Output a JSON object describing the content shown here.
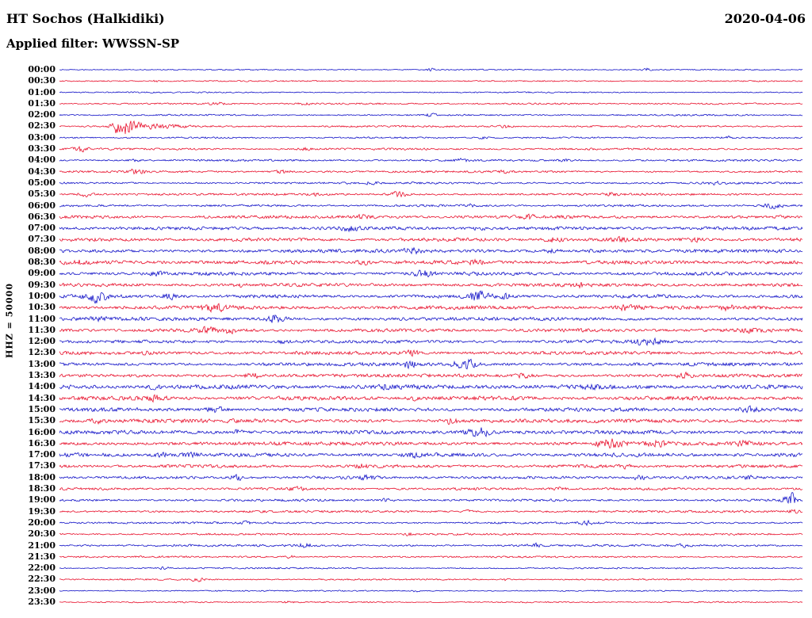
{
  "header": {
    "station": "HT Sochos (Halkidiki)",
    "date": "2020-04-06",
    "filter_label": "Applied filter: WWSSN-SP"
  },
  "y_axis_label": "HHZ = 50000",
  "colors": {
    "blue": "#1414c8",
    "red": "#e8112d"
  },
  "chart_data": {
    "type": "line",
    "title": "HT Sochos (Halkidiki) helicorder",
    "subtitle": "Applied filter: WWSSN-SP",
    "date": "2020-04-06",
    "channel_scale": "HHZ = 50000",
    "row_interval_minutes": 30,
    "rows": 48,
    "first_row": "00:00",
    "last_row": "23:30",
    "x_axis": "time within 30-minute row",
    "legend": "alternating blue/red rows, one row per 30 minutes",
    "traces": [
      {
        "time": "00:00",
        "color": "blue",
        "amp": 0.7,
        "events": [
          [
            0.5,
            1.8,
            0.004
          ],
          [
            0.79,
            2.2,
            0.004
          ]
        ]
      },
      {
        "time": "00:30",
        "color": "red",
        "amp": 0.8,
        "events": [
          [
            0.13,
            1.4,
            0.004
          ]
        ]
      },
      {
        "time": "01:00",
        "color": "blue",
        "amp": 0.8,
        "events": []
      },
      {
        "time": "01:30",
        "color": "red",
        "amp": 1.0,
        "events": [
          [
            0.215,
            2.2,
            0.008
          ],
          [
            0.33,
            1.6,
            0.006
          ]
        ]
      },
      {
        "time": "02:00",
        "color": "blue",
        "amp": 1.0,
        "events": [
          [
            0.5,
            1.6,
            0.005
          ]
        ]
      },
      {
        "time": "02:30",
        "color": "red",
        "amp": 1.2,
        "events": [
          [
            0.082,
            11,
            0.008
          ],
          [
            0.1,
            5,
            0.012
          ],
          [
            0.135,
            2.5,
            0.02
          ],
          [
            0.6,
            1.8,
            0.006
          ]
        ]
      },
      {
        "time": "03:00",
        "color": "blue",
        "amp": 1.0,
        "events": [
          [
            0.57,
            1.8,
            0.005
          ],
          [
            0.9,
            1.6,
            0.005
          ]
        ]
      },
      {
        "time": "03:30",
        "color": "red",
        "amp": 1.3,
        "events": [
          [
            0.028,
            3.0,
            0.007
          ],
          [
            0.33,
            1.6,
            0.006
          ]
        ]
      },
      {
        "time": "04:00",
        "color": "blue",
        "amp": 1.3,
        "events": [
          [
            0.1,
            1.6,
            0.005
          ],
          [
            0.54,
            2.4,
            0.006
          ],
          [
            0.68,
            1.8,
            0.005
          ]
        ]
      },
      {
        "time": "04:30",
        "color": "red",
        "amp": 1.3,
        "events": [
          [
            0.103,
            3.8,
            0.008
          ],
          [
            0.3,
            2.0,
            0.008
          ],
          [
            0.6,
            1.6,
            0.006
          ]
        ]
      },
      {
        "time": "05:00",
        "color": "blue",
        "amp": 1.3,
        "events": [
          [
            0.42,
            1.6,
            0.005
          ],
          [
            0.88,
            1.9,
            0.006
          ]
        ]
      },
      {
        "time": "05:30",
        "color": "red",
        "amp": 1.4,
        "events": [
          [
            0.035,
            2.8,
            0.007
          ],
          [
            0.345,
            1.9,
            0.006
          ],
          [
            0.455,
            3.2,
            0.009
          ],
          [
            0.74,
            1.7,
            0.005
          ]
        ]
      },
      {
        "time": "06:00",
        "color": "blue",
        "amp": 1.4,
        "events": [
          [
            0.555,
            1.9,
            0.006
          ],
          [
            0.96,
            3.2,
            0.009
          ]
        ]
      },
      {
        "time": "06:30",
        "color": "red",
        "amp": 2.0,
        "events": [
          [
            0.41,
            2.2,
            0.008
          ],
          [
            0.63,
            2.2,
            0.008
          ]
        ]
      },
      {
        "time": "07:00",
        "color": "blue",
        "amp": 2.2,
        "events": [
          [
            0.39,
            2.8,
            0.008
          ],
          [
            0.565,
            2.2,
            0.006
          ]
        ]
      },
      {
        "time": "07:30",
        "color": "red",
        "amp": 2.2,
        "events": [
          [
            0.665,
            3.0,
            0.008
          ],
          [
            0.755,
            2.6,
            0.008
          ],
          [
            0.855,
            2.4,
            0.007
          ]
        ]
      },
      {
        "time": "08:00",
        "color": "blue",
        "amp": 2.2,
        "events": [
          [
            0.475,
            3.0,
            0.008
          ],
          [
            0.665,
            2.8,
            0.007
          ],
          [
            0.72,
            2.4,
            0.006
          ]
        ]
      },
      {
        "time": "08:30",
        "color": "red",
        "amp": 2.4,
        "events": [
          [
            0.02,
            2.8,
            0.007
          ],
          [
            0.41,
            2.6,
            0.008
          ],
          [
            0.56,
            2.2,
            0.006
          ]
        ]
      },
      {
        "time": "09:00",
        "color": "blue",
        "amp": 2.2,
        "events": [
          [
            0.13,
            2.2,
            0.006
          ],
          [
            0.49,
            3.6,
            0.008
          ]
        ]
      },
      {
        "time": "09:30",
        "color": "red",
        "amp": 2.2,
        "events": [
          [
            0.24,
            2.2,
            0.006
          ],
          [
            0.7,
            2.2,
            0.006
          ]
        ]
      },
      {
        "time": "10:00",
        "color": "blue",
        "amp": 2.2,
        "events": [
          [
            0.05,
            7.0,
            0.01
          ],
          [
            0.15,
            3.4,
            0.008
          ],
          [
            0.565,
            7.0,
            0.01
          ],
          [
            0.6,
            3.2,
            0.006
          ]
        ]
      },
      {
        "time": "10:30",
        "color": "red",
        "amp": 2.4,
        "events": [
          [
            0.21,
            3.6,
            0.012
          ],
          [
            0.765,
            4.4,
            0.01
          ],
          [
            0.9,
            2.6,
            0.007
          ]
        ]
      },
      {
        "time": "11:00",
        "color": "blue",
        "amp": 2.2,
        "events": [
          [
            0.05,
            2.4,
            0.008
          ],
          [
            0.29,
            4.8,
            0.01
          ]
        ]
      },
      {
        "time": "11:30",
        "color": "red",
        "amp": 2.2,
        "events": [
          [
            0.2,
            4.0,
            0.008
          ],
          [
            0.228,
            3.6,
            0.008
          ],
          [
            0.93,
            3.0,
            0.008
          ]
        ]
      },
      {
        "time": "12:00",
        "color": "blue",
        "amp": 2.0,
        "events": [
          [
            0.3,
            2.2,
            0.006
          ],
          [
            0.79,
            4.4,
            0.012
          ]
        ]
      },
      {
        "time": "12:30",
        "color": "red",
        "amp": 2.2,
        "events": [
          [
            0.12,
            2.2,
            0.006
          ],
          [
            0.475,
            3.2,
            0.007
          ]
        ]
      },
      {
        "time": "13:00",
        "color": "blue",
        "amp": 2.2,
        "events": [
          [
            0.47,
            4.0,
            0.008
          ],
          [
            0.545,
            6.5,
            0.011
          ]
        ]
      },
      {
        "time": "13:30",
        "color": "red",
        "amp": 2.2,
        "events": [
          [
            0.26,
            3.2,
            0.007
          ],
          [
            0.625,
            2.6,
            0.006
          ],
          [
            0.84,
            3.0,
            0.007
          ]
        ]
      },
      {
        "time": "14:00",
        "color": "blue",
        "amp": 2.8,
        "events": [
          [
            0.13,
            2.6,
            0.006
          ],
          [
            0.44,
            2.6,
            0.006
          ],
          [
            0.72,
            2.8,
            0.006
          ]
        ]
      },
      {
        "time": "14:30",
        "color": "red",
        "amp": 2.6,
        "events": [
          [
            0.13,
            3.2,
            0.008
          ],
          [
            0.48,
            2.6,
            0.006
          ]
        ]
      },
      {
        "time": "15:00",
        "color": "blue",
        "amp": 2.4,
        "events": [
          [
            0.21,
            3.2,
            0.008
          ],
          [
            0.93,
            3.6,
            0.009
          ]
        ]
      },
      {
        "time": "15:30",
        "color": "red",
        "amp": 2.4,
        "events": [
          [
            0.05,
            2.4,
            0.006
          ],
          [
            0.525,
            3.2,
            0.008
          ]
        ]
      },
      {
        "time": "16:00",
        "color": "blue",
        "amp": 2.4,
        "events": [
          [
            0.24,
            2.6,
            0.006
          ],
          [
            0.565,
            6.0,
            0.012
          ]
        ]
      },
      {
        "time": "16:30",
        "color": "red",
        "amp": 2.4,
        "events": [
          [
            0.74,
            5.5,
            0.012
          ],
          [
            0.8,
            4.0,
            0.009
          ],
          [
            0.92,
            3.0,
            0.007
          ]
        ]
      },
      {
        "time": "17:00",
        "color": "blue",
        "amp": 2.4,
        "events": [
          [
            0.135,
            3.2,
            0.008
          ],
          [
            0.175,
            2.8,
            0.007
          ],
          [
            0.475,
            2.4,
            0.006
          ]
        ]
      },
      {
        "time": "17:30",
        "color": "red",
        "amp": 2.0,
        "events": [
          [
            0.41,
            2.8,
            0.007
          ],
          [
            0.76,
            2.2,
            0.006
          ]
        ]
      },
      {
        "time": "18:00",
        "color": "blue",
        "amp": 1.8,
        "events": [
          [
            0.24,
            3.2,
            0.008
          ],
          [
            0.415,
            2.8,
            0.007
          ],
          [
            0.78,
            2.6,
            0.007
          ],
          [
            0.93,
            2.2,
            0.006
          ]
        ]
      },
      {
        "time": "18:30",
        "color": "red",
        "amp": 1.6,
        "events": [
          [
            0.32,
            2.0,
            0.006
          ],
          [
            0.67,
            2.4,
            0.007
          ]
        ]
      },
      {
        "time": "19:00",
        "color": "blue",
        "amp": 1.5,
        "events": [
          [
            0.44,
            2.0,
            0.006
          ],
          [
            0.978,
            4.0,
            0.006
          ],
          [
            0.988,
            16,
            0.003
          ]
        ]
      },
      {
        "time": "19:30",
        "color": "red",
        "amp": 1.4,
        "events": [
          [
            0.55,
            1.8,
            0.005
          ],
          [
            0.988,
            2.8,
            0.005
          ]
        ]
      },
      {
        "time": "20:00",
        "color": "blue",
        "amp": 1.3,
        "events": [
          [
            0.25,
            1.6,
            0.005
          ],
          [
            0.71,
            2.4,
            0.007
          ]
        ]
      },
      {
        "time": "20:30",
        "color": "red",
        "amp": 1.2,
        "events": [
          [
            0.47,
            1.6,
            0.005
          ]
        ]
      },
      {
        "time": "21:00",
        "color": "blue",
        "amp": 1.4,
        "events": [
          [
            0.33,
            2.2,
            0.007
          ],
          [
            0.64,
            2.2,
            0.007
          ],
          [
            0.84,
            1.8,
            0.005
          ]
        ]
      },
      {
        "time": "21:30",
        "color": "red",
        "amp": 1.1,
        "events": [
          [
            0.31,
            1.6,
            0.005
          ]
        ]
      },
      {
        "time": "22:00",
        "color": "blue",
        "amp": 0.9,
        "events": [
          [
            0.14,
            1.8,
            0.005
          ]
        ]
      },
      {
        "time": "22:30",
        "color": "red",
        "amp": 0.95,
        "events": [
          [
            0.185,
            2.4,
            0.006
          ],
          [
            0.6,
            1.5,
            0.004
          ]
        ]
      },
      {
        "time": "23:00",
        "color": "blue",
        "amp": 0.8,
        "events": [
          [
            0.48,
            1.4,
            0.004
          ]
        ]
      },
      {
        "time": "23:30",
        "color": "red",
        "amp": 0.85,
        "events": [
          [
            0.31,
            1.8,
            0.005
          ]
        ]
      }
    ]
  }
}
